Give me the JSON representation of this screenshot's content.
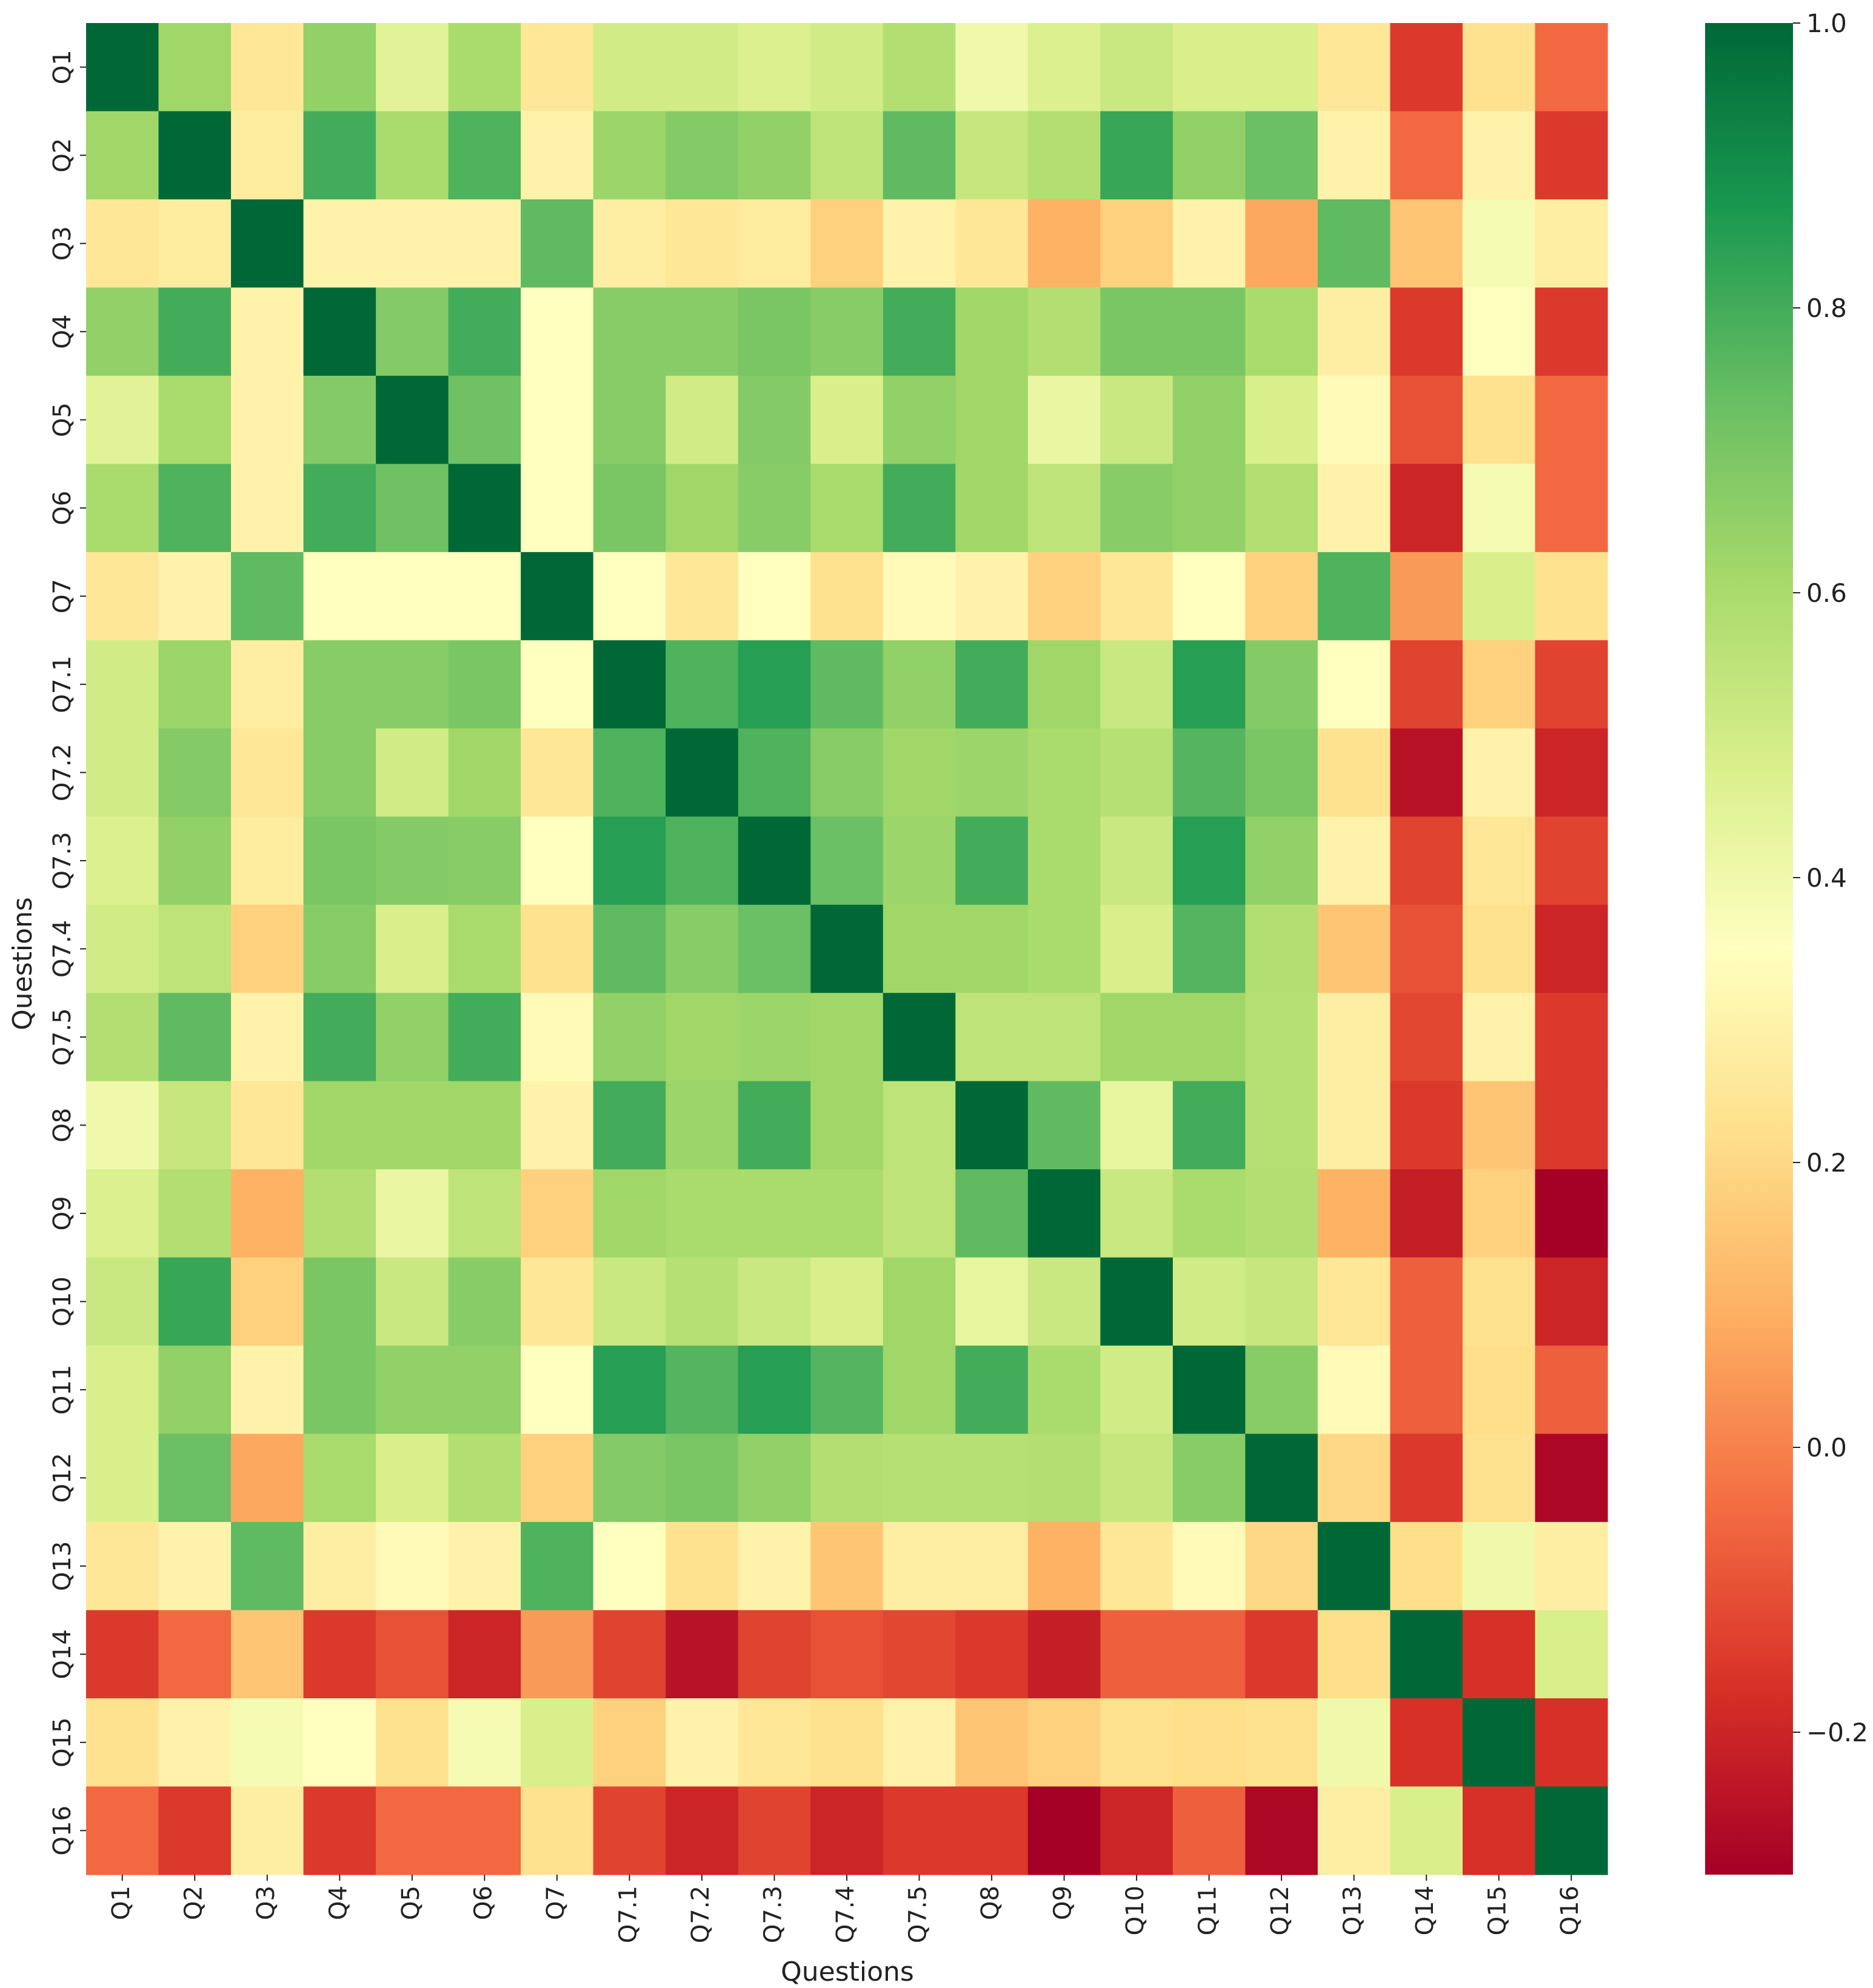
{
  "chart_data": {
    "type": "heatmap",
    "title": "",
    "xlabel": "Questions",
    "ylabel": "Questions",
    "categories": [
      "Q1",
      "Q2",
      "Q3",
      "Q4",
      "Q5",
      "Q6",
      "Q7",
      "Q7.1",
      "Q7.2",
      "Q7.3",
      "Q7.4",
      "Q7.5",
      "Q8",
      "Q9",
      "Q10",
      "Q11",
      "Q12",
      "Q13",
      "Q14",
      "Q15",
      "Q16"
    ],
    "color_scale": {
      "colormap": "red-yellow-green",
      "vmin": -0.3,
      "vmax": 1.0,
      "ticks": [
        1.0,
        0.8,
        0.6,
        0.4,
        0.2,
        0.0,
        -0.2
      ],
      "tick_labels": [
        "1.0",
        "0.8",
        "0.6",
        "0.4",
        "0.2",
        "0.0",
        "−0.2"
      ]
    },
    "colors": {
      "stops": [
        "#a50026",
        "#d73027",
        "#f46d43",
        "#fdae61",
        "#fee08b",
        "#ffffbf",
        "#d9ef8b",
        "#a6d96a",
        "#66bd63",
        "#1a9850",
        "#006837"
      ]
    },
    "matrix": [
      [
        1.0,
        0.62,
        0.25,
        0.65,
        0.45,
        0.6,
        0.25,
        0.5,
        0.5,
        0.47,
        0.5,
        0.58,
        0.4,
        0.47,
        0.52,
        0.48,
        0.48,
        0.25,
        -0.15,
        0.23,
        -0.05
      ],
      [
        0.62,
        1.0,
        0.27,
        0.8,
        0.6,
        0.78,
        0.3,
        0.63,
        0.68,
        0.65,
        0.55,
        0.75,
        0.53,
        0.58,
        0.82,
        0.65,
        0.73,
        0.3,
        -0.05,
        0.3,
        -0.15
      ],
      [
        0.25,
        0.27,
        1.0,
        0.3,
        0.3,
        0.3,
        0.75,
        0.28,
        0.25,
        0.27,
        0.18,
        0.3,
        0.25,
        0.1,
        0.18,
        0.3,
        0.08,
        0.75,
        0.15,
        0.38,
        0.28
      ],
      [
        0.65,
        0.8,
        0.3,
        1.0,
        0.68,
        0.8,
        0.35,
        0.67,
        0.67,
        0.7,
        0.67,
        0.8,
        0.62,
        0.58,
        0.7,
        0.7,
        0.6,
        0.28,
        -0.15,
        0.35,
        -0.15
      ],
      [
        0.45,
        0.6,
        0.3,
        0.68,
        1.0,
        0.72,
        0.35,
        0.67,
        0.5,
        0.68,
        0.48,
        0.65,
        0.62,
        0.42,
        0.52,
        0.65,
        0.48,
        0.33,
        -0.1,
        0.23,
        -0.05
      ],
      [
        0.6,
        0.78,
        0.3,
        0.8,
        0.72,
        1.0,
        0.35,
        0.7,
        0.62,
        0.67,
        0.6,
        0.8,
        0.62,
        0.55,
        0.67,
        0.65,
        0.58,
        0.3,
        -0.2,
        0.38,
        -0.05
      ],
      [
        0.25,
        0.3,
        0.75,
        0.35,
        0.35,
        0.35,
        1.0,
        0.35,
        0.25,
        0.35,
        0.23,
        0.33,
        0.3,
        0.18,
        0.25,
        0.35,
        0.18,
        0.78,
        0.05,
        0.48,
        0.23
      ],
      [
        0.5,
        0.63,
        0.28,
        0.67,
        0.67,
        0.7,
        0.35,
        1.0,
        0.78,
        0.85,
        0.75,
        0.65,
        0.8,
        0.62,
        0.52,
        0.85,
        0.68,
        0.35,
        -0.13,
        0.18,
        -0.13
      ],
      [
        0.5,
        0.68,
        0.25,
        0.67,
        0.5,
        0.62,
        0.25,
        0.78,
        1.0,
        0.78,
        0.67,
        0.62,
        0.63,
        0.6,
        0.57,
        0.77,
        0.7,
        0.23,
        -0.25,
        0.3,
        -0.2
      ],
      [
        0.47,
        0.65,
        0.27,
        0.7,
        0.68,
        0.67,
        0.35,
        0.85,
        0.78,
        1.0,
        0.73,
        0.63,
        0.8,
        0.6,
        0.52,
        0.85,
        0.65,
        0.3,
        -0.13,
        0.25,
        -0.13
      ],
      [
        0.5,
        0.55,
        0.18,
        0.67,
        0.48,
        0.6,
        0.23,
        0.75,
        0.67,
        0.73,
        1.0,
        0.62,
        0.62,
        0.6,
        0.48,
        0.77,
        0.58,
        0.15,
        -0.1,
        0.23,
        -0.2
      ],
      [
        0.58,
        0.75,
        0.3,
        0.8,
        0.65,
        0.8,
        0.33,
        0.65,
        0.62,
        0.63,
        0.62,
        1.0,
        0.55,
        0.55,
        0.62,
        0.62,
        0.57,
        0.28,
        -0.12,
        0.3,
        -0.15
      ],
      [
        0.4,
        0.53,
        0.25,
        0.62,
        0.62,
        0.62,
        0.3,
        0.8,
        0.63,
        0.8,
        0.62,
        0.55,
        1.0,
        0.75,
        0.43,
        0.8,
        0.57,
        0.28,
        -0.15,
        0.15,
        -0.15
      ],
      [
        0.47,
        0.58,
        0.1,
        0.58,
        0.42,
        0.55,
        0.18,
        0.62,
        0.6,
        0.6,
        0.6,
        0.55,
        0.75,
        1.0,
        0.52,
        0.6,
        0.58,
        0.1,
        -0.22,
        0.18,
        -0.3
      ],
      [
        0.52,
        0.82,
        0.18,
        0.7,
        0.52,
        0.67,
        0.25,
        0.52,
        0.57,
        0.52,
        0.48,
        0.62,
        0.43,
        0.52,
        1.0,
        0.5,
        0.53,
        0.25,
        -0.07,
        0.23,
        -0.2
      ],
      [
        0.48,
        0.65,
        0.3,
        0.7,
        0.65,
        0.65,
        0.35,
        0.85,
        0.77,
        0.85,
        0.77,
        0.62,
        0.8,
        0.6,
        0.5,
        1.0,
        0.67,
        0.33,
        -0.07,
        0.22,
        -0.07
      ],
      [
        0.48,
        0.73,
        0.08,
        0.6,
        0.48,
        0.58,
        0.18,
        0.68,
        0.7,
        0.65,
        0.58,
        0.57,
        0.57,
        0.58,
        0.53,
        0.67,
        1.0,
        0.2,
        -0.15,
        0.23,
        -0.28
      ],
      [
        0.25,
        0.3,
        0.75,
        0.28,
        0.33,
        0.3,
        0.78,
        0.35,
        0.23,
        0.3,
        0.15,
        0.28,
        0.28,
        0.1,
        0.25,
        0.33,
        0.2,
        1.0,
        0.22,
        0.4,
        0.28
      ],
      [
        -0.15,
        -0.05,
        0.15,
        -0.15,
        -0.1,
        -0.2,
        0.05,
        -0.13,
        -0.25,
        -0.13,
        -0.1,
        -0.12,
        -0.15,
        -0.22,
        -0.07,
        -0.07,
        -0.15,
        0.22,
        1.0,
        -0.17,
        0.48
      ],
      [
        0.23,
        0.3,
        0.38,
        0.35,
        0.23,
        0.38,
        0.48,
        0.18,
        0.3,
        0.25,
        0.23,
        0.3,
        0.15,
        0.18,
        0.23,
        0.22,
        0.23,
        0.4,
        -0.17,
        1.0,
        -0.17
      ],
      [
        -0.05,
        -0.15,
        0.28,
        -0.15,
        -0.05,
        -0.05,
        0.23,
        -0.13,
        -0.2,
        -0.13,
        -0.2,
        -0.15,
        -0.15,
        -0.3,
        -0.2,
        -0.07,
        -0.28,
        0.28,
        0.48,
        -0.17,
        1.0
      ]
    ]
  }
}
